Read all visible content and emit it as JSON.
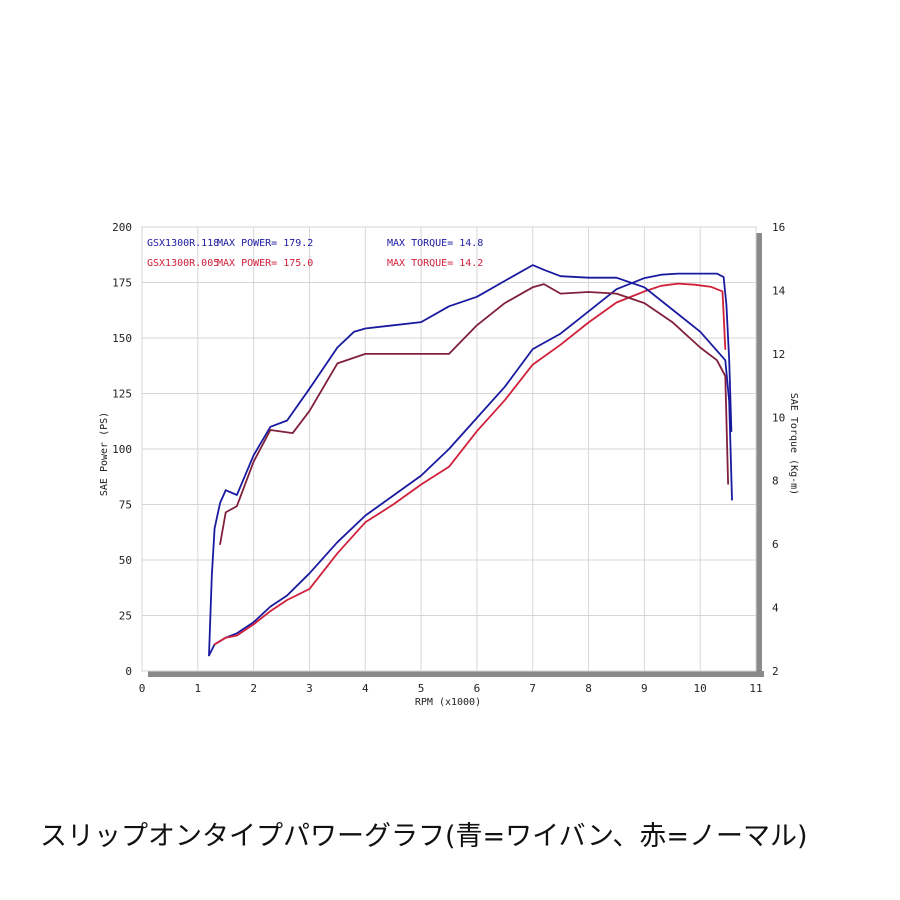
{
  "caption": "スリップオンタイプパワーグラフ(青=ワイバン、赤=ノーマル)",
  "chart_data": {
    "type": "line",
    "xlabel": "RPM (x1000)",
    "ylabel": "SAE Power (PS)",
    "y2label": "SAE Torque (Kg-m)",
    "xlim": [
      0,
      11
    ],
    "ylim": [
      0,
      200
    ],
    "y2lim": [
      2,
      16
    ],
    "x_ticks": [
      "0",
      "1",
      "2",
      "3",
      "4",
      "5",
      "6",
      "7",
      "8",
      "9",
      "10",
      "11"
    ],
    "y_ticks": [
      "0",
      "25",
      "50",
      "75",
      "100",
      "125",
      "150",
      "175",
      "200"
    ],
    "y2_ticks": [
      "2",
      "4",
      "6",
      "8",
      "10",
      "12",
      "14",
      "16"
    ],
    "grid": true,
    "annotations": [
      {
        "run": "GSX1300R.118",
        "power_label": "MAX POWER= 179.2",
        "torque_label": "MAX TORQUE= 14.8",
        "color": "#1a1aa0"
      },
      {
        "run": "GSX1300R.005",
        "power_label": "MAX POWER= 175.0",
        "torque_label": "MAX TORQUE= 14.2",
        "color": "#d0203a"
      }
    ],
    "series": [
      {
        "axis": "power",
        "color": "#1a1aa0",
        "x": [
          1.2,
          1.3,
          1.5,
          1.7,
          2.0,
          2.3,
          2.6,
          3.0,
          3.5,
          4.0,
          4.5,
          5.0,
          5.5,
          6.0,
          6.5,
          7.0,
          7.5,
          8.0,
          8.5,
          9.0,
          9.3,
          9.6,
          10.0,
          10.3,
          10.42,
          10.47,
          10.52,
          10.56
        ],
        "y": [
          7,
          12,
          15,
          17,
          22,
          29,
          34,
          44,
          58,
          70,
          79,
          88,
          100,
          114,
          128,
          145,
          152,
          162,
          172,
          177,
          178.5,
          179,
          179,
          179,
          177.5,
          165,
          140,
          108
        ]
      },
      {
        "axis": "power",
        "color": "#d0203a",
        "x": [
          1.3,
          1.5,
          1.7,
          2.0,
          2.3,
          2.6,
          3.0,
          3.5,
          4.0,
          4.5,
          5.0,
          5.5,
          6.0,
          6.5,
          7.0,
          7.5,
          8.0,
          8.5,
          9.0,
          9.3,
          9.6,
          9.9,
          10.2,
          10.4,
          10.45
        ],
        "y": [
          12,
          15,
          16,
          21,
          27,
          32,
          37,
          53,
          67,
          75,
          84,
          92,
          108,
          122,
          138,
          147,
          157,
          166,
          171,
          173.5,
          174.5,
          174,
          173,
          171,
          145
        ]
      },
      {
        "axis": "torque",
        "color": "#1a1aa0",
        "x": [
          1.2,
          1.25,
          1.3,
          1.4,
          1.5,
          1.7,
          2.0,
          2.3,
          2.6,
          3.0,
          3.5,
          3.8,
          4.0,
          4.5,
          5.0,
          5.5,
          6.0,
          6.5,
          7.0,
          7.2,
          7.5,
          8.0,
          8.5,
          9.0,
          9.5,
          10.0,
          10.3,
          10.45,
          10.52,
          10.57
        ],
        "y": [
          2.5,
          5.0,
          6.5,
          7.3,
          7.7,
          7.55,
          8.8,
          9.7,
          9.9,
          10.9,
          12.2,
          12.7,
          12.8,
          12.9,
          13.0,
          13.5,
          13.8,
          14.3,
          14.8,
          14.65,
          14.45,
          14.4,
          14.4,
          14.1,
          13.4,
          12.7,
          12.1,
          11.8,
          10.5,
          7.4
        ]
      },
      {
        "axis": "torque",
        "color": "#80203a",
        "x": [
          1.4,
          1.5,
          1.7,
          2.0,
          2.3,
          2.7,
          3.0,
          3.5,
          4.0,
          4.5,
          5.0,
          5.5,
          6.0,
          6.5,
          7.0,
          7.2,
          7.5,
          8.0,
          8.5,
          9.0,
          9.5,
          10.0,
          10.3,
          10.45,
          10.5
        ],
        "y": [
          6.0,
          7.0,
          7.2,
          8.6,
          9.6,
          9.5,
          10.2,
          11.7,
          12.0,
          12.0,
          12.0,
          12.0,
          12.9,
          13.6,
          14.1,
          14.2,
          13.9,
          13.95,
          13.9,
          13.6,
          13.0,
          12.2,
          11.8,
          11.3,
          7.9
        ]
      }
    ]
  }
}
